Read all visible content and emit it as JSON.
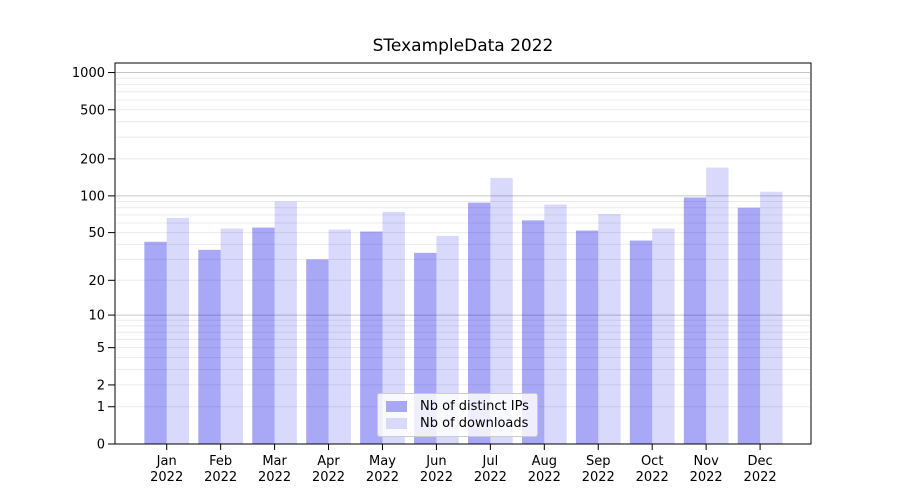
{
  "chart": {
    "title": "STexampleData 2022"
  },
  "chart_data": {
    "type": "bar",
    "title": "STexampleData 2022",
    "categories": [
      "Jan",
      "Feb",
      "Mar",
      "Apr",
      "May",
      "Jun",
      "Jul",
      "Aug",
      "Sep",
      "Oct",
      "Nov",
      "Dec"
    ],
    "category_year": "2022",
    "series": [
      {
        "name": "Nb of distinct IPs",
        "color": "rgba(0,0,232,0.34)",
        "solid_color": "#a8a8f7",
        "values": [
          42,
          36,
          55,
          30,
          51,
          34,
          88,
          63,
          52,
          43,
          97,
          80
        ]
      },
      {
        "name": "Nb of downloads",
        "color": "rgba(0,0,232,0.15)",
        "solid_color": "#d9d9f9",
        "values": [
          66,
          54,
          90,
          53,
          74,
          47,
          140,
          85,
          71,
          54,
          170,
          108
        ]
      }
    ],
    "y_ticks": [
      0,
      1,
      2,
      5,
      10,
      20,
      50,
      100,
      200,
      500,
      1000
    ],
    "y_scale": "log10(value+1)",
    "ylim": [
      0,
      1200
    ],
    "xlabel": "",
    "ylabel": "",
    "grid": "both",
    "grid_minor_color": "#ececec",
    "grid_major_color": "#c6c6c6",
    "legend_position": "lower center inside"
  }
}
